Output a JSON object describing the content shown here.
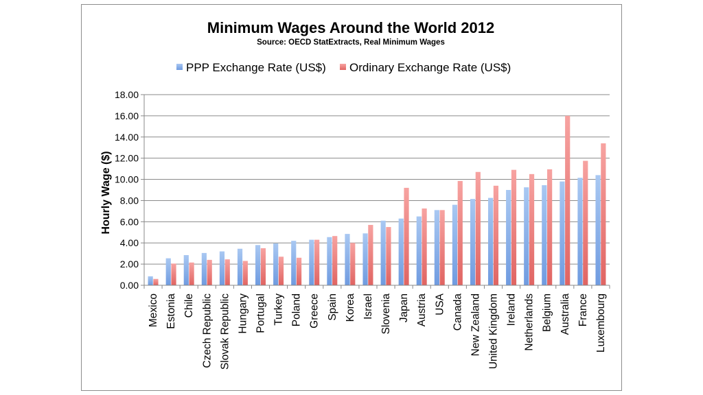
{
  "chart_data": {
    "type": "bar",
    "title": "Minimum Wages Around the World 2012",
    "subtitle": "Source: OECD StatExtracts, Real Minimum Wages",
    "xlabel": "",
    "ylabel": "Hourly Wage ($)",
    "ylim": [
      0,
      18
    ],
    "yticks": [
      "0.00",
      "2.00",
      "4.00",
      "6.00",
      "8.00",
      "10.00",
      "12.00",
      "14.00",
      "16.00",
      "18.00"
    ],
    "grid": true,
    "legend_position": "top",
    "categories": [
      "Mexico",
      "Estonia",
      "Chile",
      "Czech Republic",
      "Slovak Republic",
      "Hungary",
      "Portugal",
      "Turkey",
      "Poland",
      "Greece",
      "Spain",
      "Korea",
      "Israel",
      "Slovenia",
      "Japan",
      "Austria",
      "USA",
      "Canada",
      "New Zealand",
      "United Kingdom",
      "Ireland",
      "Netherlands",
      "Belgium",
      "Australia",
      "France",
      "Luxembourg"
    ],
    "series": [
      {
        "name": "PPP Exchange Rate (US$)",
        "color": "#8fb4e8",
        "values": [
          0.85,
          2.55,
          2.85,
          3.05,
          3.2,
          3.45,
          3.8,
          3.95,
          4.2,
          4.3,
          4.55,
          4.85,
          4.9,
          6.1,
          6.3,
          6.5,
          7.1,
          7.6,
          8.15,
          8.25,
          9.0,
          9.25,
          9.45,
          9.8,
          10.15,
          10.4
        ]
      },
      {
        "name": "Ordinary Exchange Rate (US$)",
        "color": "#ef8a88",
        "values": [
          0.6,
          2.05,
          2.15,
          2.4,
          2.45,
          2.3,
          3.5,
          2.7,
          2.6,
          4.3,
          4.65,
          4.0,
          5.7,
          5.5,
          9.2,
          7.25,
          7.1,
          9.85,
          10.7,
          9.4,
          10.9,
          10.5,
          10.95,
          16.0,
          11.75,
          13.4
        ]
      }
    ]
  }
}
